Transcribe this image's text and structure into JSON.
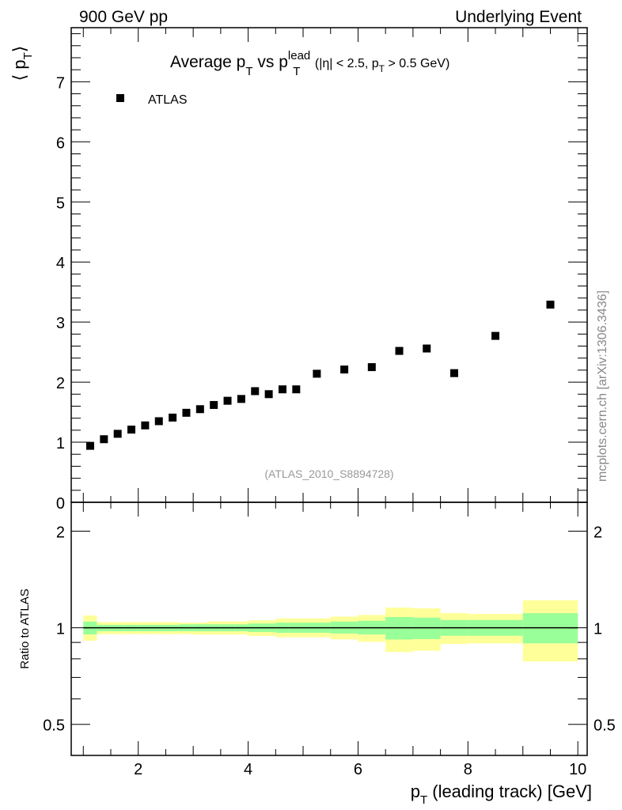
{
  "header": {
    "left": "900 GeV pp",
    "right": "Underlying Event"
  },
  "side_label": "mcplots.cern.ch [arXiv:1306.3436]",
  "watermark": "(ATLAS_2010_S8894728)",
  "colors": {
    "data": "#000000",
    "band_outer": "#ffff99",
    "band_inner": "#99ff99",
    "watermark": "#999999",
    "side": "#888888"
  },
  "chart_data": [
    {
      "type": "scatter",
      "title": {
        "main": "Average p",
        "sub1": "T",
        "mid": " vs p",
        "sup": "lead",
        "sub2": "T",
        "cond_a": " (|η| < 2.5, p",
        "cond_sub": "T",
        "cond_b": " > 0.5 GeV)"
      },
      "ylabel": {
        "open": "⟨ p",
        "sub": "T",
        "close": "⟩"
      },
      "xlim": [
        0.78,
        10.17
      ],
      "ylim": [
        0,
        7.9
      ],
      "yticks": [
        0,
        1,
        2,
        3,
        4,
        5,
        6,
        7
      ],
      "legend": {
        "label": "ATLAS",
        "placement": "top-left"
      },
      "series": [
        {
          "name": "ATLAS",
          "x": [
            1.125,
            1.375,
            1.625,
            1.875,
            2.125,
            2.375,
            2.625,
            2.875,
            3.125,
            3.375,
            3.625,
            3.875,
            4.125,
            4.375,
            4.625,
            4.875,
            5.25,
            5.75,
            6.25,
            6.75,
            7.25,
            7.75,
            8.5,
            9.5
          ],
          "y": [
            0.94,
            1.05,
            1.14,
            1.21,
            1.28,
            1.35,
            1.41,
            1.49,
            1.55,
            1.62,
            1.69,
            1.72,
            1.85,
            1.8,
            1.88,
            1.88,
            2.14,
            2.21,
            2.25,
            2.52,
            2.56,
            2.15,
            2.77,
            3.29
          ]
        }
      ]
    },
    {
      "type": "area",
      "ylabel": "Ratio to ATLAS",
      "xlabel": {
        "main": "p",
        "sub": "T",
        "rest": " (leading track) [GeV]"
      },
      "xlim": [
        0.78,
        10.17
      ],
      "ylim": [
        0.4,
        2.46
      ],
      "yscale": "log",
      "yticks": [
        0.5,
        1,
        2
      ],
      "ytick_labels": [
        "0.5",
        "1",
        "2"
      ],
      "xticks": [
        2,
        4,
        6,
        8,
        10
      ],
      "xtick_labels": [
        "2",
        "4",
        "6",
        "8",
        "10"
      ],
      "bin_edges": [
        1,
        1.25,
        1.5,
        1.75,
        2,
        2.25,
        2.5,
        2.75,
        3,
        3.25,
        3.5,
        3.75,
        4,
        4.25,
        4.5,
        4.75,
        5,
        5.5,
        6,
        6.5,
        7,
        7.5,
        8,
        9,
        10
      ],
      "outer_hi": [
        1.092,
        1.041,
        1.041,
        1.041,
        1.041,
        1.041,
        1.041,
        1.037,
        1.037,
        1.046,
        1.046,
        1.046,
        1.055,
        1.055,
        1.069,
        1.069,
        1.069,
        1.083,
        1.096,
        1.155,
        1.149,
        1.11,
        1.104,
        1.218
      ],
      "outer_lo": [
        0.911,
        0.955,
        0.955,
        0.955,
        0.955,
        0.955,
        0.955,
        0.955,
        0.952,
        0.952,
        0.952,
        0.952,
        0.943,
        0.943,
        0.934,
        0.934,
        0.934,
        0.92,
        0.904,
        0.84,
        0.848,
        0.89,
        0.894,
        0.785
      ],
      "inner_hi": [
        1.045,
        1.021,
        1.021,
        1.021,
        1.021,
        1.021,
        1.021,
        1.025,
        1.025,
        1.025,
        1.025,
        1.025,
        1.031,
        1.031,
        1.037,
        1.037,
        1.037,
        1.045,
        1.051,
        1.08,
        1.075,
        1.057,
        1.057,
        1.11
      ],
      "inner_lo": [
        0.953,
        0.975,
        0.975,
        0.975,
        0.975,
        0.975,
        0.975,
        0.975,
        0.975,
        0.975,
        0.975,
        0.975,
        0.97,
        0.97,
        0.964,
        0.964,
        0.964,
        0.959,
        0.953,
        0.919,
        0.922,
        0.944,
        0.944,
        0.894
      ],
      "reference": 1
    }
  ]
}
